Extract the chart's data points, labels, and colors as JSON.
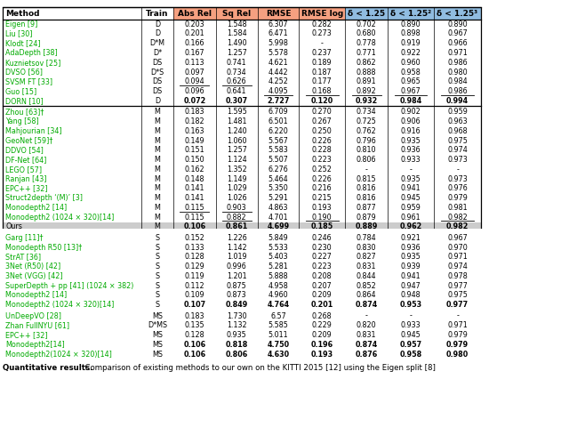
{
  "headers": [
    "Method",
    "Train",
    "Abs Rel",
    "Sq Rel",
    "RMSE",
    "RMSE log",
    "δ < 1.25",
    "δ < 1.25²",
    "δ < 1.25³"
  ],
  "sections": [
    [
      [
        "Eigen [9]",
        "D",
        "0.203",
        "1.548",
        "6.307",
        "0.282",
        "0.702",
        "0.890",
        "0.890"
      ],
      [
        "Liu [30]",
        "D",
        "0.201",
        "1.584",
        "6.471",
        "0.273",
        "0.680",
        "0.898",
        "0.967"
      ],
      [
        "Klodt [24]",
        "D*M",
        "0.166",
        "1.490",
        "5.998",
        "-",
        "0.778",
        "0.919",
        "0.966"
      ],
      [
        "AdaDepth [38]",
        "D*",
        "0.167",
        "1.257",
        "5.578",
        "0.237",
        "0.771",
        "0.922",
        "0.971"
      ],
      [
        "Kuznietsov [25]",
        "DS",
        "0.113",
        "0.741",
        "4.621",
        "0.189",
        "0.862",
        "0.960",
        "0.986"
      ],
      [
        "DVSO [56]",
        "D*S",
        "0.097",
        "0.734",
        "4.442",
        "0.187",
        "0.888",
        "0.958",
        "0.980"
      ],
      [
        "SVSM FT [33]",
        "DS",
        "0.094",
        "0.626",
        "4.252",
        "0.177",
        "0.891",
        "0.965",
        "0.984"
      ],
      [
        "Guo [15]",
        "DS",
        "0.096",
        "0.641",
        "4.095",
        "0.168",
        "0.892",
        "0.967",
        "0.986"
      ],
      [
        "DORN [10]",
        "D",
        "0.072",
        "0.307",
        "2.727",
        "0.120",
        "0.932",
        "0.984",
        "0.994"
      ]
    ],
    [
      [
        "Zhou [63]†",
        "M",
        "0.183",
        "1.595",
        "6.709",
        "0.270",
        "0.734",
        "0.902",
        "0.959"
      ],
      [
        "Yang [58]",
        "M",
        "0.182",
        "1.481",
        "6.501",
        "0.267",
        "0.725",
        "0.906",
        "0.963"
      ],
      [
        "Mahjourian [34]",
        "M",
        "0.163",
        "1.240",
        "6.220",
        "0.250",
        "0.762",
        "0.916",
        "0.968"
      ],
      [
        "GeoNet [59]†",
        "M",
        "0.149",
        "1.060",
        "5.567",
        "0.226",
        "0.796",
        "0.935",
        "0.975"
      ],
      [
        "DDVO [54]",
        "M",
        "0.151",
        "1.257",
        "5.583",
        "0.228",
        "0.810",
        "0.936",
        "0.974"
      ],
      [
        "DF-Net [64]",
        "M",
        "0.150",
        "1.124",
        "5.507",
        "0.223",
        "0.806",
        "0.933",
        "0.973"
      ],
      [
        "LEGO [57]",
        "M",
        "0.162",
        "1.352",
        "6.276",
        "0.252",
        "-",
        "-",
        "-"
      ],
      [
        "Ranjan [43]",
        "M",
        "0.148",
        "1.149",
        "5.464",
        "0.226",
        "0.815",
        "0.935",
        "0.973"
      ],
      [
        "EPC++ [32]",
        "M",
        "0.141",
        "1.029",
        "5.350",
        "0.216",
        "0.816",
        "0.941",
        "0.976"
      ],
      [
        "Struct2depth ‘(M)’ [3]",
        "M",
        "0.141",
        "1.026",
        "5.291",
        "0.215",
        "0.816",
        "0.945",
        "0.979"
      ],
      [
        "Monodepth2 [14]",
        "M",
        "0.115",
        "0.903",
        "4.863",
        "0.193",
        "0.877",
        "0.959",
        "0.981"
      ],
      [
        "Monodepth2 (1024 × 320)[14]",
        "M",
        "0.115",
        "0.882",
        "4.701",
        "0.190",
        "0.879",
        "0.961",
        "0.982"
      ],
      [
        "Ours",
        "M",
        "0.106",
        "0.861",
        "4.699",
        "0.185",
        "0.889",
        "0.962",
        "0.982"
      ]
    ],
    [
      [
        "Garg [11]†",
        "S",
        "0.152",
        "1.226",
        "5.849",
        "0.246",
        "0.784",
        "0.921",
        "0.967"
      ],
      [
        "Monodepth R50 [13]†",
        "S",
        "0.133",
        "1.142",
        "5.533",
        "0.230",
        "0.830",
        "0.936",
        "0.970"
      ],
      [
        "StrAT [36]",
        "S",
        "0.128",
        "1.019",
        "5.403",
        "0.227",
        "0.827",
        "0.935",
        "0.971"
      ],
      [
        "3Net (R50) [42]",
        "S",
        "0.129",
        "0.996",
        "5.281",
        "0.223",
        "0.831",
        "0.939",
        "0.974"
      ],
      [
        "3Net (VGG) [42]",
        "S",
        "0.119",
        "1.201",
        "5.888",
        "0.208",
        "0.844",
        "0.941",
        "0.978"
      ],
      [
        "SuperDepth + pp [41] (1024 × 382)",
        "S",
        "0.112",
        "0.875",
        "4.958",
        "0.207",
        "0.852",
        "0.947",
        "0.977"
      ],
      [
        "Monodepth2 [14]",
        "S",
        "0.109",
        "0.873",
        "4.960",
        "0.209",
        "0.864",
        "0.948",
        "0.975"
      ],
      [
        "Monodepth2 (1024 × 320)[14]",
        "S",
        "0.107",
        "0.849",
        "4.764",
        "0.201",
        "0.874",
        "0.953",
        "0.977"
      ]
    ],
    [
      [
        "UnDeepVO [28]",
        "MS",
        "0.183",
        "1.730",
        "6.57",
        "0.268",
        "-",
        "-",
        "-"
      ],
      [
        "Zhan FullNYU [61]",
        "D*MS",
        "0.135",
        "1.132",
        "5.585",
        "0.229",
        "0.820",
        "0.933",
        "0.971"
      ],
      [
        "EPC++ [32]",
        "MS",
        "0.128",
        "0.935",
        "5.011",
        "0.209",
        "0.831",
        "0.945",
        "0.979"
      ],
      [
        "Monodepth2[14]",
        "MS",
        "0.106",
        "0.818",
        "4.750",
        "0.196",
        "0.874",
        "0.957",
        "0.979"
      ],
      [
        "Monodepth2(1024 × 320)[14]",
        "MS",
        "0.106",
        "0.806",
        "4.630",
        "0.193",
        "0.876",
        "0.958",
        "0.980"
      ]
    ]
  ],
  "underlines": {
    "0": {
      "SVSM FT [33]": [
        2,
        3
      ],
      "Guo [15]": [
        4,
        5,
        6,
        7,
        8
      ]
    },
    "1": {
      "Monodepth2 [14]": [
        2,
        3
      ],
      "Monodepth2 (1024 × 320)[14]": [
        3,
        5,
        8
      ]
    },
    "2": {
      "SuperDepth + pp [41] (1024 × 382)": [
        4,
        5,
        6,
        8
      ],
      "Monodepth2 [14]": [
        2,
        3
      ],
      "Monodepth2 (1024 × 320)[14]": [
        8
      ]
    },
    "3": {
      "Monodepth2[14]": [
        3,
        4,
        6,
        7
      ],
      "Monodepth2(1024 × 320)[14]": [
        8
      ]
    }
  },
  "bold_rows": {
    "0": [
      "DORN [10]"
    ],
    "1": [
      "Ours"
    ],
    "2": [
      "Monodepth2 (1024 × 320)[14]"
    ],
    "3": [
      "Monodepth2[14]",
      "Monodepth2(1024 × 320)[14]"
    ]
  },
  "ours_row_section": 1,
  "ours_row_idx": 12,
  "header_salmon_cols": [
    2,
    3,
    4,
    5
  ],
  "header_blue_cols": [
    6,
    7,
    8
  ],
  "salmon_color": "#f5a080",
  "blue_color": "#90bce0",
  "green_color": "#00aa00",
  "ours_bg_color": "#cccccc",
  "caption_bold": "Quantitative results.",
  "caption_normal": "  Comparison of existing methods to our own on the KITTI 2015 [12] using the Eigen split [8]"
}
